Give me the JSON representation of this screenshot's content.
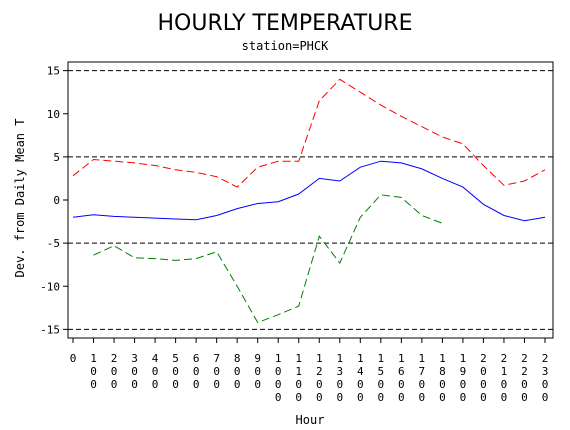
{
  "chart_data": {
    "type": "line",
    "title": "HOURLY TEMPERATURE",
    "subtitle": "station=PHCK",
    "xlabel": "Hour",
    "ylabel": "Dev. from Daily Mean T",
    "xlim": [
      0,
      23
    ],
    "ylim": [
      -16,
      16
    ],
    "x_ticks": [
      "0",
      "100",
      "200",
      "300",
      "400",
      "500",
      "600",
      "700",
      "800",
      "900",
      "1000",
      "1100",
      "1200",
      "1300",
      "1400",
      "1500",
      "1600",
      "1700",
      "1800",
      "1900",
      "2000",
      "2100",
      "2200",
      "2300"
    ],
    "y_ticks": [
      -15,
      -10,
      -5,
      0,
      5,
      10,
      15
    ],
    "reference_lines": [
      -15,
      -5,
      5,
      15
    ],
    "grid": false,
    "series": [
      {
        "color": "#ff0000",
        "style": "dashed",
        "x": [
          0,
          1,
          2,
          3,
          4,
          5,
          6,
          7,
          8,
          9,
          10,
          11,
          12,
          13,
          14,
          15,
          16,
          17,
          18,
          19,
          20,
          21,
          22,
          23
        ],
        "values": [
          2.8,
          4.7,
          4.5,
          4.3,
          4.0,
          3.5,
          3.2,
          2.7,
          1.5,
          3.8,
          4.5,
          4.5,
          11.5,
          14.0,
          12.5,
          11.0,
          9.7,
          8.5,
          7.3,
          6.5,
          4.0,
          1.7,
          2.2,
          3.5
        ]
      },
      {
        "color": "#0000ff",
        "style": "solid",
        "x": [
          0,
          1,
          2,
          3,
          4,
          5,
          6,
          7,
          8,
          9,
          10,
          11,
          12,
          13,
          14,
          15,
          16,
          17,
          18,
          19,
          20,
          21,
          22,
          23
        ],
        "values": [
          -2.0,
          -1.7,
          -1.9,
          -2.0,
          -2.1,
          -2.2,
          -2.3,
          -1.8,
          -1.0,
          -0.4,
          -0.2,
          0.7,
          2.5,
          2.2,
          3.8,
          4.5,
          4.3,
          3.6,
          2.5,
          1.5,
          -0.5,
          -1.8,
          -2.4,
          -2.0
        ]
      },
      {
        "color": "#008000",
        "style": "dashed",
        "x": [
          1,
          2,
          3,
          4,
          5,
          6,
          7,
          8,
          9,
          10,
          11,
          12,
          13,
          14,
          15,
          16,
          17,
          18
        ],
        "values": [
          -6.4,
          -5.3,
          -6.7,
          -6.8,
          -7.0,
          -6.8,
          -6.0,
          -10.0,
          -14.2,
          -13.3,
          -12.3,
          -4.2,
          -7.3,
          -2.0,
          0.6,
          0.3,
          -1.8,
          -2.7
        ]
      }
    ]
  }
}
